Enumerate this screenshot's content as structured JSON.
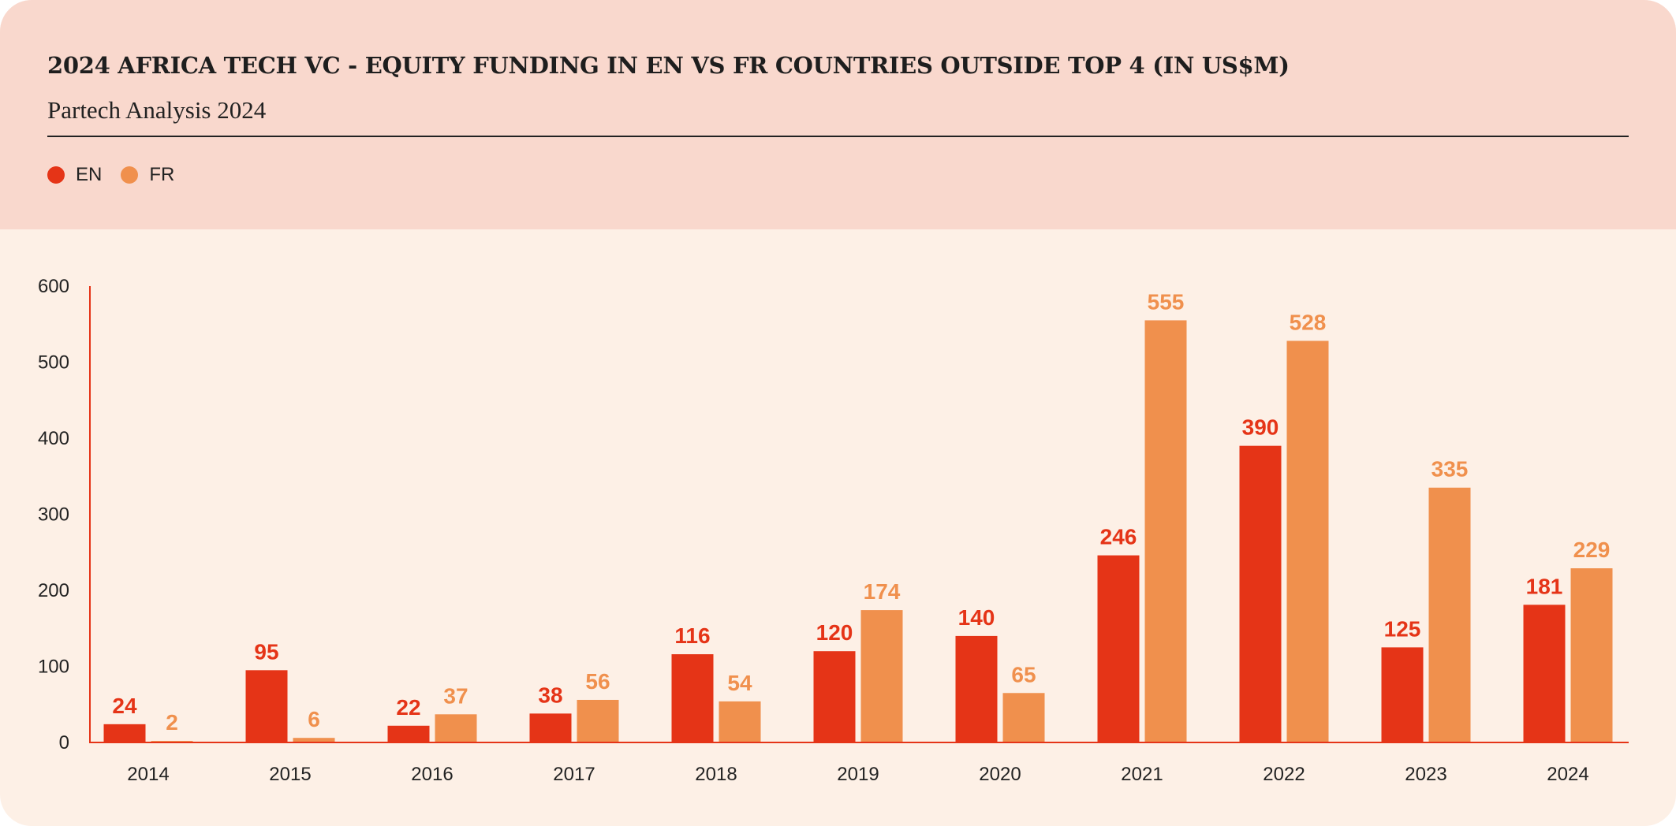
{
  "header": {
    "title": "2024 AFRICA TECH VC - EQUITY FUNDING IN EN VS FR COUNTRIES OUTSIDE TOP 4 (IN US$M)",
    "subtitle": "Partech Analysis 2024"
  },
  "colors": {
    "EN": "#E53417",
    "FR": "#F0904D",
    "header_bg": "#F9D8CD",
    "plot_bg": "#FDF0E6",
    "axis": "#E53417"
  },
  "chart_data": {
    "type": "bar",
    "title": "2024 AFRICA TECH VC - EQUITY FUNDING IN EN VS FR COUNTRIES OUTSIDE TOP 4 (IN US$M)",
    "subtitle": "Partech Analysis 2024",
    "categories": [
      "2014",
      "2015",
      "2016",
      "2017",
      "2018",
      "2019",
      "2020",
      "2021",
      "2022",
      "2023",
      "2024"
    ],
    "series": [
      {
        "name": "EN",
        "values": [
          24,
          95,
          22,
          38,
          116,
          120,
          140,
          246,
          390,
          125,
          181
        ]
      },
      {
        "name": "FR",
        "values": [
          2,
          6,
          37,
          56,
          54,
          174,
          65,
          555,
          528,
          335,
          229
        ]
      }
    ],
    "ylim": [
      0,
      600
    ],
    "yticks": [
      0,
      100,
      200,
      300,
      400,
      500,
      600
    ],
    "xlabel": "",
    "ylabel": "",
    "grid": false,
    "legend": "top-left",
    "data_labels": true
  }
}
